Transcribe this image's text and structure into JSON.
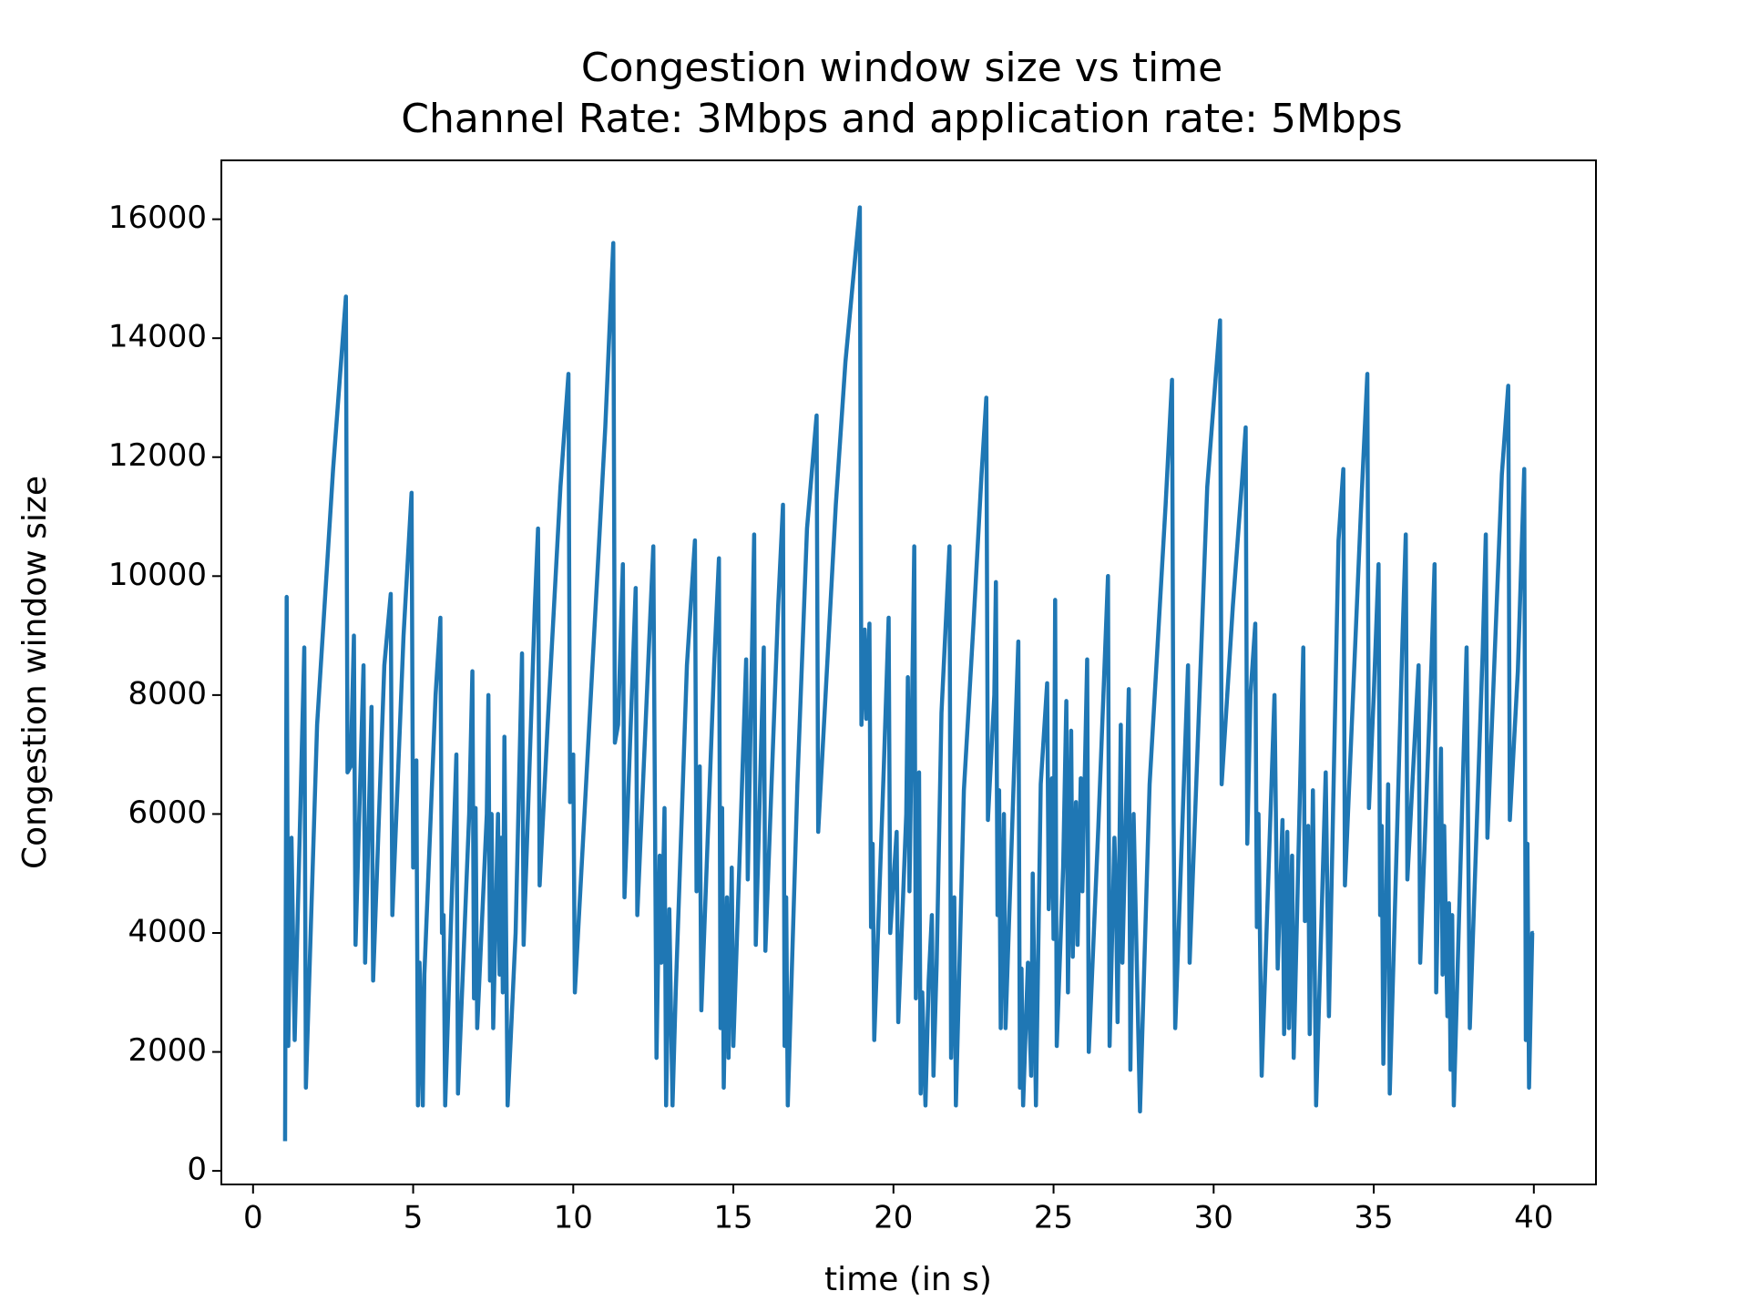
{
  "chart_data": {
    "type": "line",
    "title": "Congestion window size vs time",
    "subtitle": "Channel Rate: 3Mbps and application rate: 5Mbps",
    "xlabel": "time (in s)",
    "ylabel": "Congestion window size",
    "xlim": [
      -0.99,
      41.94
    ],
    "ylim": [
      -228,
      16990
    ],
    "xticks": [
      0,
      5,
      10,
      15,
      20,
      25,
      30,
      35,
      40
    ],
    "yticks": [
      0,
      2000,
      4000,
      6000,
      8000,
      10000,
      12000,
      14000,
      16000
    ],
    "series": [
      {
        "color": "#1f77b4",
        "x": [
          1.0,
          1.05,
          1.1,
          1.2,
          1.3,
          1.6,
          1.65,
          2.0,
          2.5,
          2.9,
          2.95,
          3.05,
          3.15,
          3.2,
          3.45,
          3.5,
          3.7,
          3.75,
          4.1,
          4.3,
          4.35,
          4.7,
          4.95,
          5.0,
          5.1,
          5.15,
          5.2,
          5.3,
          5.35,
          5.7,
          5.85,
          5.9,
          5.95,
          6.0,
          6.2,
          6.35,
          6.4,
          6.75,
          6.85,
          6.9,
          6.95,
          7.0,
          7.3,
          7.35,
          7.4,
          7.45,
          7.5,
          7.65,
          7.7,
          7.75,
          7.8,
          7.85,
          7.95,
          8.2,
          8.4,
          8.45,
          8.8,
          8.9,
          8.95,
          9.2,
          9.6,
          9.85,
          9.9,
          10.0,
          10.05,
          10.5,
          11.0,
          11.25,
          11.3,
          11.4,
          11.55,
          11.6,
          11.95,
          12.0,
          12.5,
          12.6,
          12.7,
          12.75,
          12.85,
          12.9,
          13.0,
          13.1,
          13.2,
          13.55,
          13.8,
          13.85,
          13.95,
          14.0,
          14.4,
          14.55,
          14.6,
          14.65,
          14.7,
          14.8,
          14.85,
          14.95,
          15.0,
          15.4,
          15.45,
          15.65,
          15.7,
          15.95,
          16.0,
          16.4,
          16.55,
          16.6,
          16.65,
          16.7,
          17.0,
          17.3,
          17.6,
          17.65,
          18.2,
          18.5,
          18.95,
          19.0,
          19.1,
          19.15,
          19.25,
          19.3,
          19.35,
          19.4,
          19.7,
          19.85,
          19.9,
          20.1,
          20.15,
          20.4,
          20.45,
          20.5,
          20.65,
          20.7,
          20.8,
          20.85,
          20.9,
          21.0,
          21.1,
          21.2,
          21.25,
          21.35,
          21.5,
          21.75,
          21.8,
          21.9,
          21.95,
          22.2,
          22.5,
          22.75,
          22.9,
          22.95,
          23.15,
          23.2,
          23.25,
          23.3,
          23.35,
          23.45,
          23.5,
          23.9,
          23.95,
          24.0,
          24.05,
          24.2,
          24.3,
          24.35,
          24.45,
          24.6,
          24.8,
          24.85,
          24.95,
          25.0,
          25.05,
          25.1,
          25.3,
          25.4,
          25.45,
          25.55,
          25.6,
          25.7,
          25.75,
          25.85,
          25.9,
          26.05,
          26.1,
          26.4,
          26.7,
          26.75,
          26.9,
          26.95,
          27.0,
          27.1,
          27.15,
          27.35,
          27.4,
          27.5,
          27.7,
          28.0,
          28.5,
          28.7,
          28.75,
          28.8,
          29.1,
          29.2,
          29.25,
          29.8,
          30.2,
          30.25,
          30.6,
          30.9,
          31.0,
          31.05,
          31.15,
          31.3,
          31.35,
          31.4,
          31.5,
          31.9,
          32.0,
          32.15,
          32.2,
          32.3,
          32.35,
          32.45,
          32.5,
          32.8,
          32.85,
          32.95,
          33.0,
          33.1,
          33.2,
          33.5,
          33.6,
          33.9,
          34.05,
          34.1,
          34.6,
          34.8,
          34.85,
          35.0,
          35.15,
          35.2,
          35.25,
          35.3,
          35.45,
          35.5,
          35.9,
          36.0,
          36.05,
          36.4,
          36.45,
          36.8,
          36.9,
          36.95,
          37.1,
          37.15,
          37.2,
          37.3,
          37.35,
          37.4,
          37.45,
          37.5,
          37.9,
          38.0,
          38.4,
          38.5,
          38.55,
          39.0,
          39.2,
          39.25,
          39.5,
          39.7,
          39.75,
          39.8,
          39.85,
          39.95,
          40.0
        ],
        "values": [
          500,
          9650,
          2100,
          5600,
          2200,
          8800,
          1400,
          7500,
          11800,
          14700,
          6700,
          6800,
          9000,
          3800,
          8500,
          3500,
          7800,
          3200,
          8500,
          9700,
          4300,
          9000,
          11400,
          5100,
          6900,
          1100,
          3500,
          1100,
          3300,
          8000,
          9300,
          4000,
          4300,
          1100,
          4500,
          7000,
          1300,
          6000,
          8400,
          2900,
          6100,
          2400,
          6000,
          8000,
          3200,
          6000,
          2400,
          6000,
          3300,
          5600,
          3000,
          7300,
          1100,
          4000,
          8700,
          3800,
          9500,
          10800,
          4800,
          7500,
          11500,
          13400,
          6200,
          7000,
          3000,
          7500,
          12500,
          15600,
          7200,
          7500,
          10200,
          4600,
          9800,
          4300,
          10500,
          1900,
          5300,
          3500,
          6100,
          1100,
          4400,
          1100,
          3000,
          8500,
          10600,
          4700,
          6800,
          2700,
          8500,
          10300,
          2400,
          6100,
          1400,
          4600,
          1900,
          5100,
          2100,
          8600,
          4900,
          10700,
          3800,
          8800,
          3700,
          9500,
          11200,
          2100,
          4600,
          1100,
          6500,
          10800,
          12700,
          5700,
          11200,
          13600,
          16200,
          7500,
          9100,
          7600,
          9200,
          4100,
          5500,
          2200,
          6800,
          9300,
          4000,
          5700,
          2500,
          6000,
          8300,
          4700,
          10500,
          2900,
          6700,
          1300,
          3000,
          1100,
          3200,
          4300,
          1600,
          3500,
          7700,
          10500,
          1900,
          4600,
          1100,
          6400,
          9200,
          11700,
          13000,
          5900,
          8000,
          9900,
          4300,
          6400,
          2400,
          6000,
          2400,
          8900,
          1400,
          3400,
          1100,
          3500,
          1600,
          5000,
          1100,
          6500,
          8200,
          4400,
          6600,
          3900,
          9600,
          2100,
          5100,
          7900,
          3000,
          7400,
          3600,
          6200,
          3800,
          6600,
          4700,
          8600,
          2000,
          5800,
          10000,
          2100,
          5600,
          4700,
          2500,
          7500,
          3500,
          8100,
          1700,
          6000,
          1000,
          6500,
          11200,
          13300,
          5900,
          2400,
          7000,
          8500,
          3500,
          11500,
          14300,
          6500,
          9500,
          11700,
          12500,
          5500,
          8000,
          9200,
          4100,
          6000,
          1600,
          8000,
          3400,
          5900,
          2300,
          5700,
          2400,
          5300,
          1900,
          8800,
          4200,
          5800,
          2300,
          6400,
          1100,
          6700,
          2600,
          10600,
          11800,
          4800,
          11100,
          13400,
          6100,
          8000,
          10200,
          4300,
          5800,
          1800,
          6500,
          1300,
          9000,
          10700,
          4900,
          8500,
          3500,
          8500,
          10200,
          3000,
          7100,
          3300,
          5800,
          2600,
          4500,
          1700,
          4300,
          1100,
          8800,
          2400,
          8700,
          10700,
          5600,
          11700,
          13200,
          5900,
          8400,
          11800,
          2200,
          5500,
          1400,
          4000,
          4000
        ]
      }
    ]
  }
}
